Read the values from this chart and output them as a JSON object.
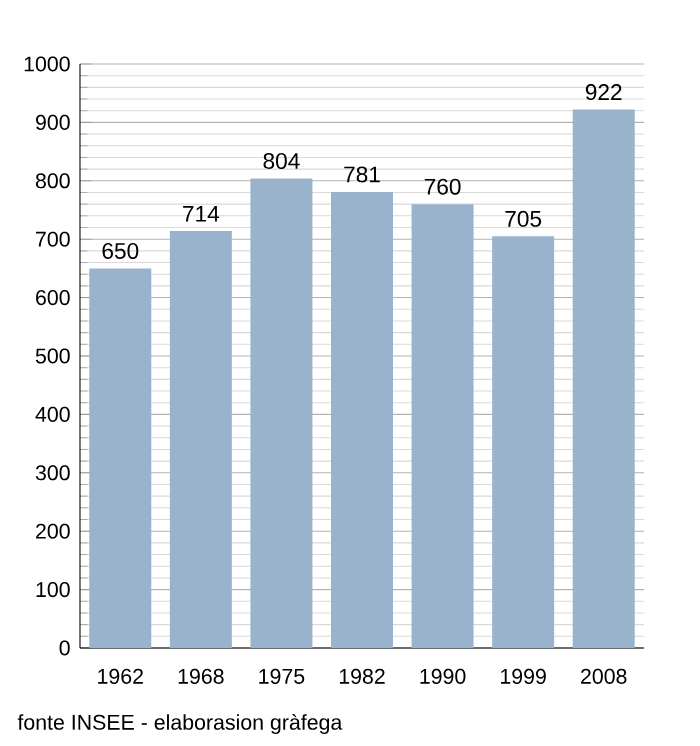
{
  "chart_data": {
    "type": "bar",
    "categories": [
      "1962",
      "1968",
      "1975",
      "1982",
      "1990",
      "1999",
      "2008"
    ],
    "values": [
      650,
      714,
      804,
      781,
      760,
      705,
      922
    ],
    "color": "#99b3cc",
    "ylim": [
      0,
      1000
    ],
    "yticks": [
      0,
      100,
      200,
      300,
      400,
      500,
      600,
      700,
      800,
      900,
      1000
    ],
    "grid": "y",
    "data_labels": true,
    "annotations": [
      "fonte INSEE - elaborasion gràfega"
    ]
  }
}
